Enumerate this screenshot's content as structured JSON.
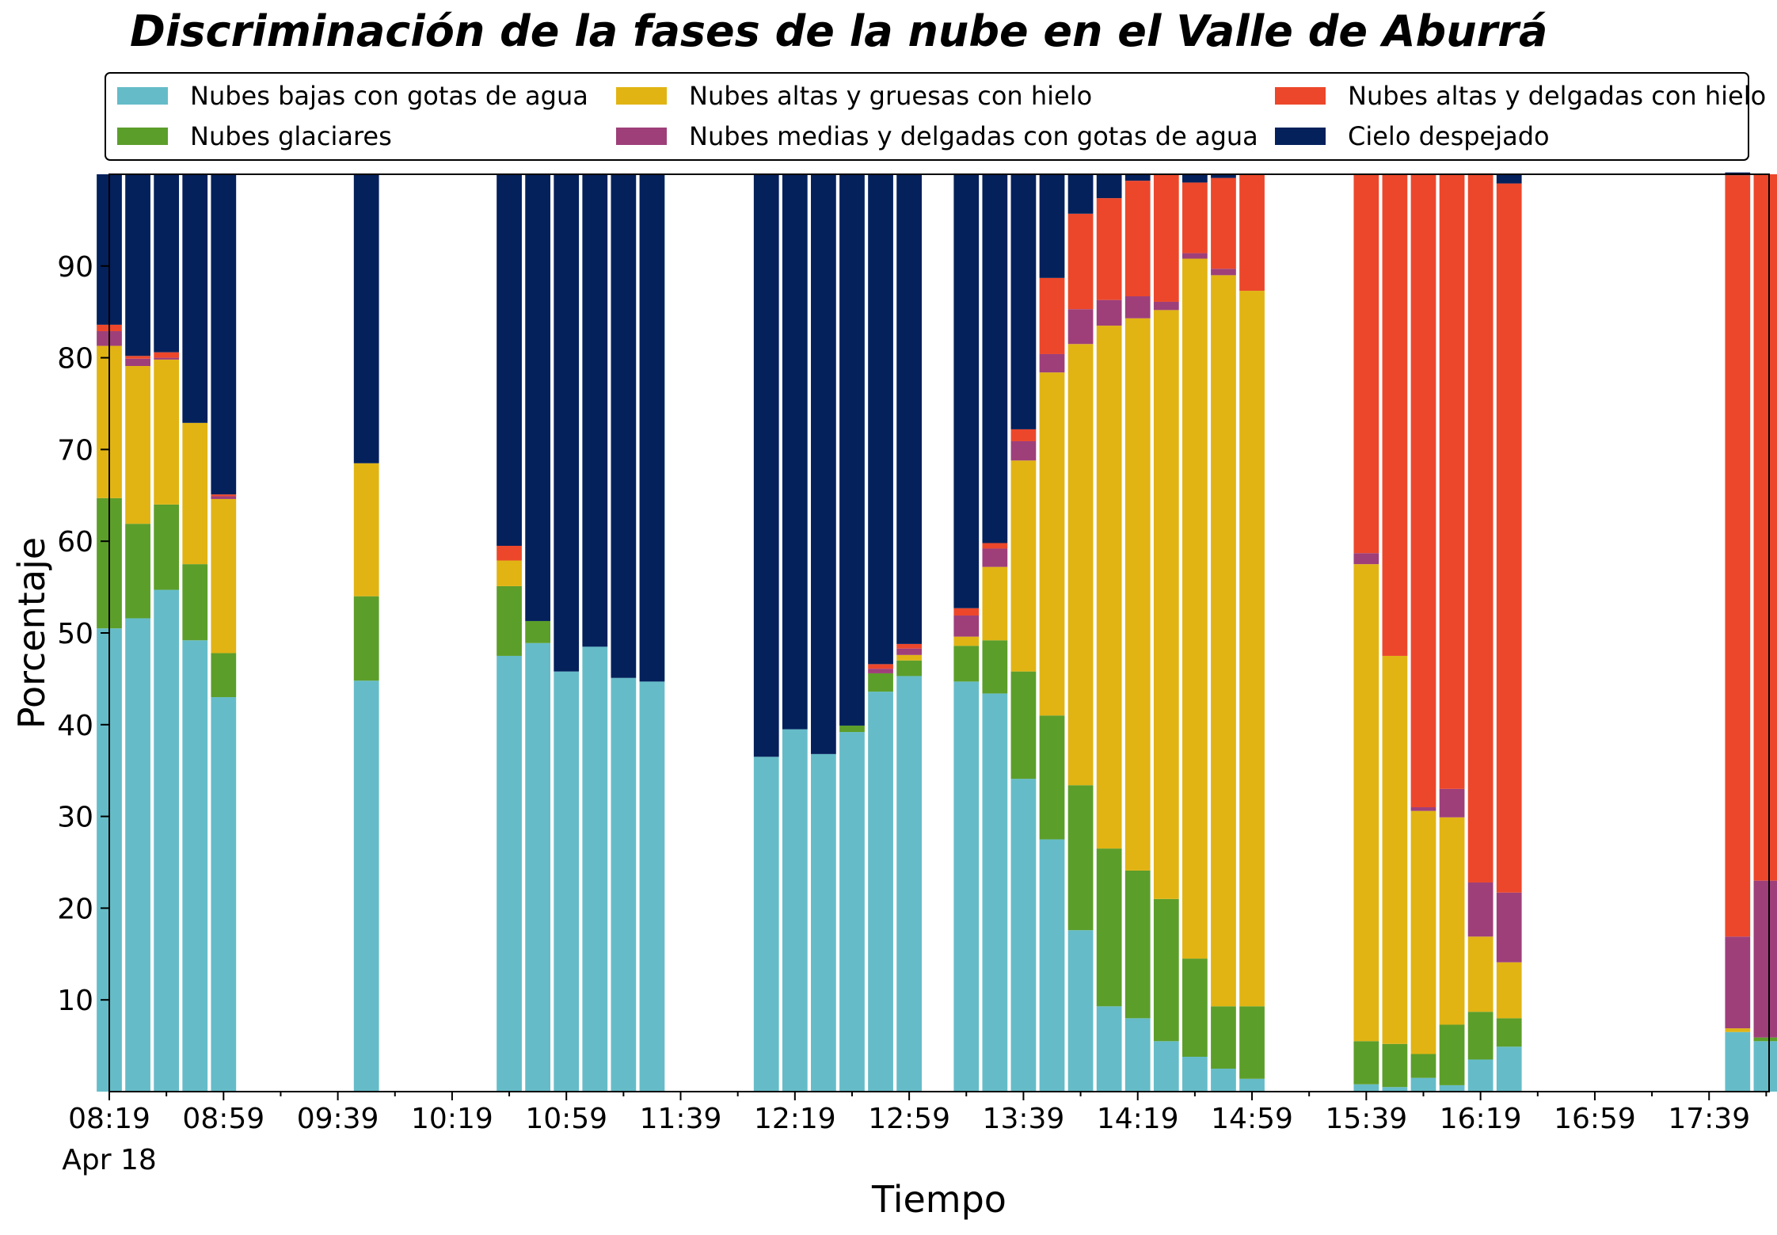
{
  "chart_data": {
    "type": "bar",
    "stacked": true,
    "title": "Discriminación de la fases de la nube en el Valle de Aburrá",
    "xlabel": "Tiempo",
    "ylabel": "Porcentaje",
    "ylim": [
      0,
      100
    ],
    "yticks": [
      10,
      20,
      30,
      40,
      50,
      60,
      70,
      80,
      90
    ],
    "x_minutes_start": 499,
    "x_minutes_end": 1080,
    "xtick_labels": [
      {
        "t": "08:19",
        "sub": "Apr 18"
      },
      {
        "t": "08:59",
        "sub": ""
      },
      {
        "t": "09:39",
        "sub": ""
      },
      {
        "t": "10:19",
        "sub": ""
      },
      {
        "t": "10:59",
        "sub": ""
      },
      {
        "t": "11:39",
        "sub": ""
      },
      {
        "t": "12:19",
        "sub": ""
      },
      {
        "t": "12:59",
        "sub": ""
      },
      {
        "t": "13:39",
        "sub": ""
      },
      {
        "t": "14:19",
        "sub": ""
      },
      {
        "t": "14:59",
        "sub": ""
      },
      {
        "t": "15:39",
        "sub": ""
      },
      {
        "t": "16:19",
        "sub": ""
      },
      {
        "t": "16:59",
        "sub": ""
      },
      {
        "t": "17:39",
        "sub": ""
      }
    ],
    "legend_position": "top",
    "series": [
      {
        "name": "Nubes bajas con gotas de agua",
        "color": "#65bcc8"
      },
      {
        "name": "Nubes glaciares",
        "color": "#5c9e2a"
      },
      {
        "name": "Nubes altas y gruesas con hielo",
        "color": "#e1b414"
      },
      {
        "name": "Nubes medias y delgadas con gotas de agua",
        "color": "#9e3f7a"
      },
      {
        "name": "Nubes altas y delgadas con hielo",
        "color": "#ec472b"
      },
      {
        "name": "Cielo despejado",
        "color": "#04215c"
      }
    ],
    "x": [
      "08:19",
      "08:29",
      "08:39",
      "08:49",
      "08:59",
      "09:49",
      "10:39",
      "10:49",
      "10:59",
      "11:09",
      "11:19",
      "11:29",
      "12:09",
      "12:19",
      "12:29",
      "12:39",
      "12:49",
      "12:59",
      "13:19",
      "13:29",
      "13:39",
      "13:49",
      "13:59",
      "14:09",
      "14:19",
      "14:29",
      "14:39",
      "14:49",
      "14:59",
      "15:39",
      "15:49",
      "15:59",
      "16:09",
      "16:19",
      "16:29",
      "17:49",
      "17:59"
    ],
    "values": [
      [
        50.5,
        14.2,
        16.6,
        1.6,
        0.7,
        16.4
      ],
      [
        51.6,
        10.3,
        17.2,
        0.8,
        0.3,
        19.8
      ],
      [
        54.7,
        9.3,
        15.8,
        0.2,
        0.6,
        19.4
      ],
      [
        49.2,
        8.3,
        15.4,
        0,
        0,
        27.1
      ],
      [
        43.0,
        4.8,
        16.8,
        0.3,
        0.2,
        34.9
      ],
      [
        44.8,
        9.2,
        14.5,
        0,
        0,
        31.5
      ],
      [
        47.5,
        7.6,
        2.8,
        0,
        1.6,
        40.5
      ],
      [
        48.9,
        2.4,
        0,
        0,
        0,
        48.7
      ],
      [
        45.8,
        0,
        0,
        0,
        0,
        54.2
      ],
      [
        48.5,
        0,
        0,
        0,
        0,
        51.5
      ],
      [
        45.1,
        0,
        0,
        0,
        0,
        54.9
      ],
      [
        44.7,
        0,
        0,
        0,
        0,
        55.3
      ],
      [
        36.5,
        0,
        0,
        0,
        0,
        63.5
      ],
      [
        39.5,
        0,
        0,
        0,
        0,
        60.5
      ],
      [
        36.8,
        0,
        0,
        0,
        0,
        63.2
      ],
      [
        39.2,
        0.7,
        0,
        0,
        0,
        60.1
      ],
      [
        43.6,
        2.0,
        0,
        0.5,
        0.5,
        53.4
      ],
      [
        45.3,
        1.7,
        0.6,
        0.7,
        0.5,
        51.2
      ],
      [
        44.7,
        3.9,
        1.0,
        2.3,
        0.8,
        47.3
      ],
      [
        43.4,
        5.8,
        8.0,
        2.0,
        0.6,
        40.2
      ],
      [
        34.1,
        11.7,
        23.0,
        2.1,
        1.3,
        27.8
      ],
      [
        27.5,
        13.5,
        37.4,
        2.0,
        8.3,
        11.3
      ],
      [
        17.6,
        15.8,
        48.1,
        3.8,
        10.4,
        4.3
      ],
      [
        9.3,
        17.2,
        57.0,
        2.8,
        11.1,
        2.6
      ],
      [
        8.0,
        16.1,
        60.2,
        2.4,
        12.6,
        0.7
      ],
      [
        5.5,
        15.5,
        64.2,
        0.9,
        13.9,
        0
      ],
      [
        3.8,
        10.7,
        76.3,
        0.6,
        7.7,
        0.9
      ],
      [
        2.5,
        6.8,
        79.7,
        0.7,
        9.9,
        0.4
      ],
      [
        1.4,
        7.9,
        78.0,
        0,
        12.7,
        0
      ],
      [
        0.8,
        4.7,
        52.0,
        1.2,
        41.3,
        0
      ],
      [
        0.5,
        4.7,
        42.3,
        0,
        52.5,
        0
      ],
      [
        1.5,
        2.6,
        26.5,
        0.4,
        69.0,
        0
      ],
      [
        0.7,
        6.6,
        22.6,
        3.1,
        67.0,
        0
      ],
      [
        3.5,
        5.2,
        8.2,
        5.9,
        77.3,
        0
      ],
      [
        4.9,
        3.1,
        6.1,
        7.6,
        77.3,
        1.0
      ],
      [
        6.5,
        0,
        0.4,
        10.0,
        83.0,
        0.3
      ],
      [
        5.5,
        0.4,
        0,
        17.1,
        77.0,
        0
      ]
    ]
  }
}
